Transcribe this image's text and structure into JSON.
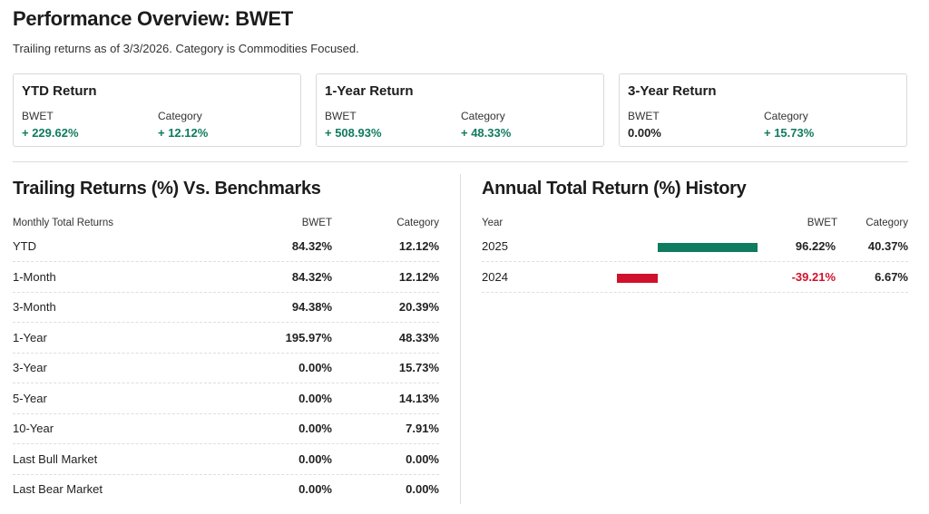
{
  "header": {
    "title": "Performance Overview: BWET",
    "subtitle": "Trailing returns as of 3/3/2026. Category is Commodities Focused."
  },
  "cards": [
    {
      "title": "YTD Return",
      "fund_label": "BWET",
      "fund_value": "+ 229.62%",
      "cat_label": "Category",
      "cat_value": "+ 12.12%"
    },
    {
      "title": "1-Year Return",
      "fund_label": "BWET",
      "fund_value": "+ 508.93%",
      "cat_label": "Category",
      "cat_value": "+ 48.33%"
    },
    {
      "title": "3-Year Return",
      "fund_label": "BWET",
      "fund_value": "0.00%",
      "cat_label": "Category",
      "cat_value": "+ 15.73%"
    }
  ],
  "trailing": {
    "title": "Trailing Returns (%) Vs. Benchmarks",
    "columns": [
      "Monthly Total Returns",
      "BWET",
      "Category"
    ],
    "rows": [
      {
        "name": "YTD",
        "fund": "84.32%",
        "category": "12.12%"
      },
      {
        "name": "1-Month",
        "fund": "84.32%",
        "category": "12.12%"
      },
      {
        "name": "3-Month",
        "fund": "94.38%",
        "category": "20.39%"
      },
      {
        "name": "1-Year",
        "fund": "195.97%",
        "category": "48.33%"
      },
      {
        "name": "3-Year",
        "fund": "0.00%",
        "category": "15.73%"
      },
      {
        "name": "5-Year",
        "fund": "0.00%",
        "category": "14.13%"
      },
      {
        "name": "10-Year",
        "fund": "0.00%",
        "category": "7.91%"
      },
      {
        "name": "Last Bull Market",
        "fund": "0.00%",
        "category": "0.00%"
      },
      {
        "name": "Last Bear Market",
        "fund": "0.00%",
        "category": "0.00%"
      }
    ]
  },
  "annual": {
    "title": "Annual Total Return (%) History",
    "columns": [
      "Year",
      "BWET",
      "Category"
    ],
    "rows": [
      {
        "year": "2025",
        "fund": "96.22%",
        "category": "40.37%",
        "value": 96.22
      },
      {
        "year": "2024",
        "fund": "-39.21%",
        "category": "6.67%",
        "value": -39.21
      }
    ]
  },
  "colors": {
    "positive": "#0f7b5f",
    "negative": "#d0112b"
  }
}
